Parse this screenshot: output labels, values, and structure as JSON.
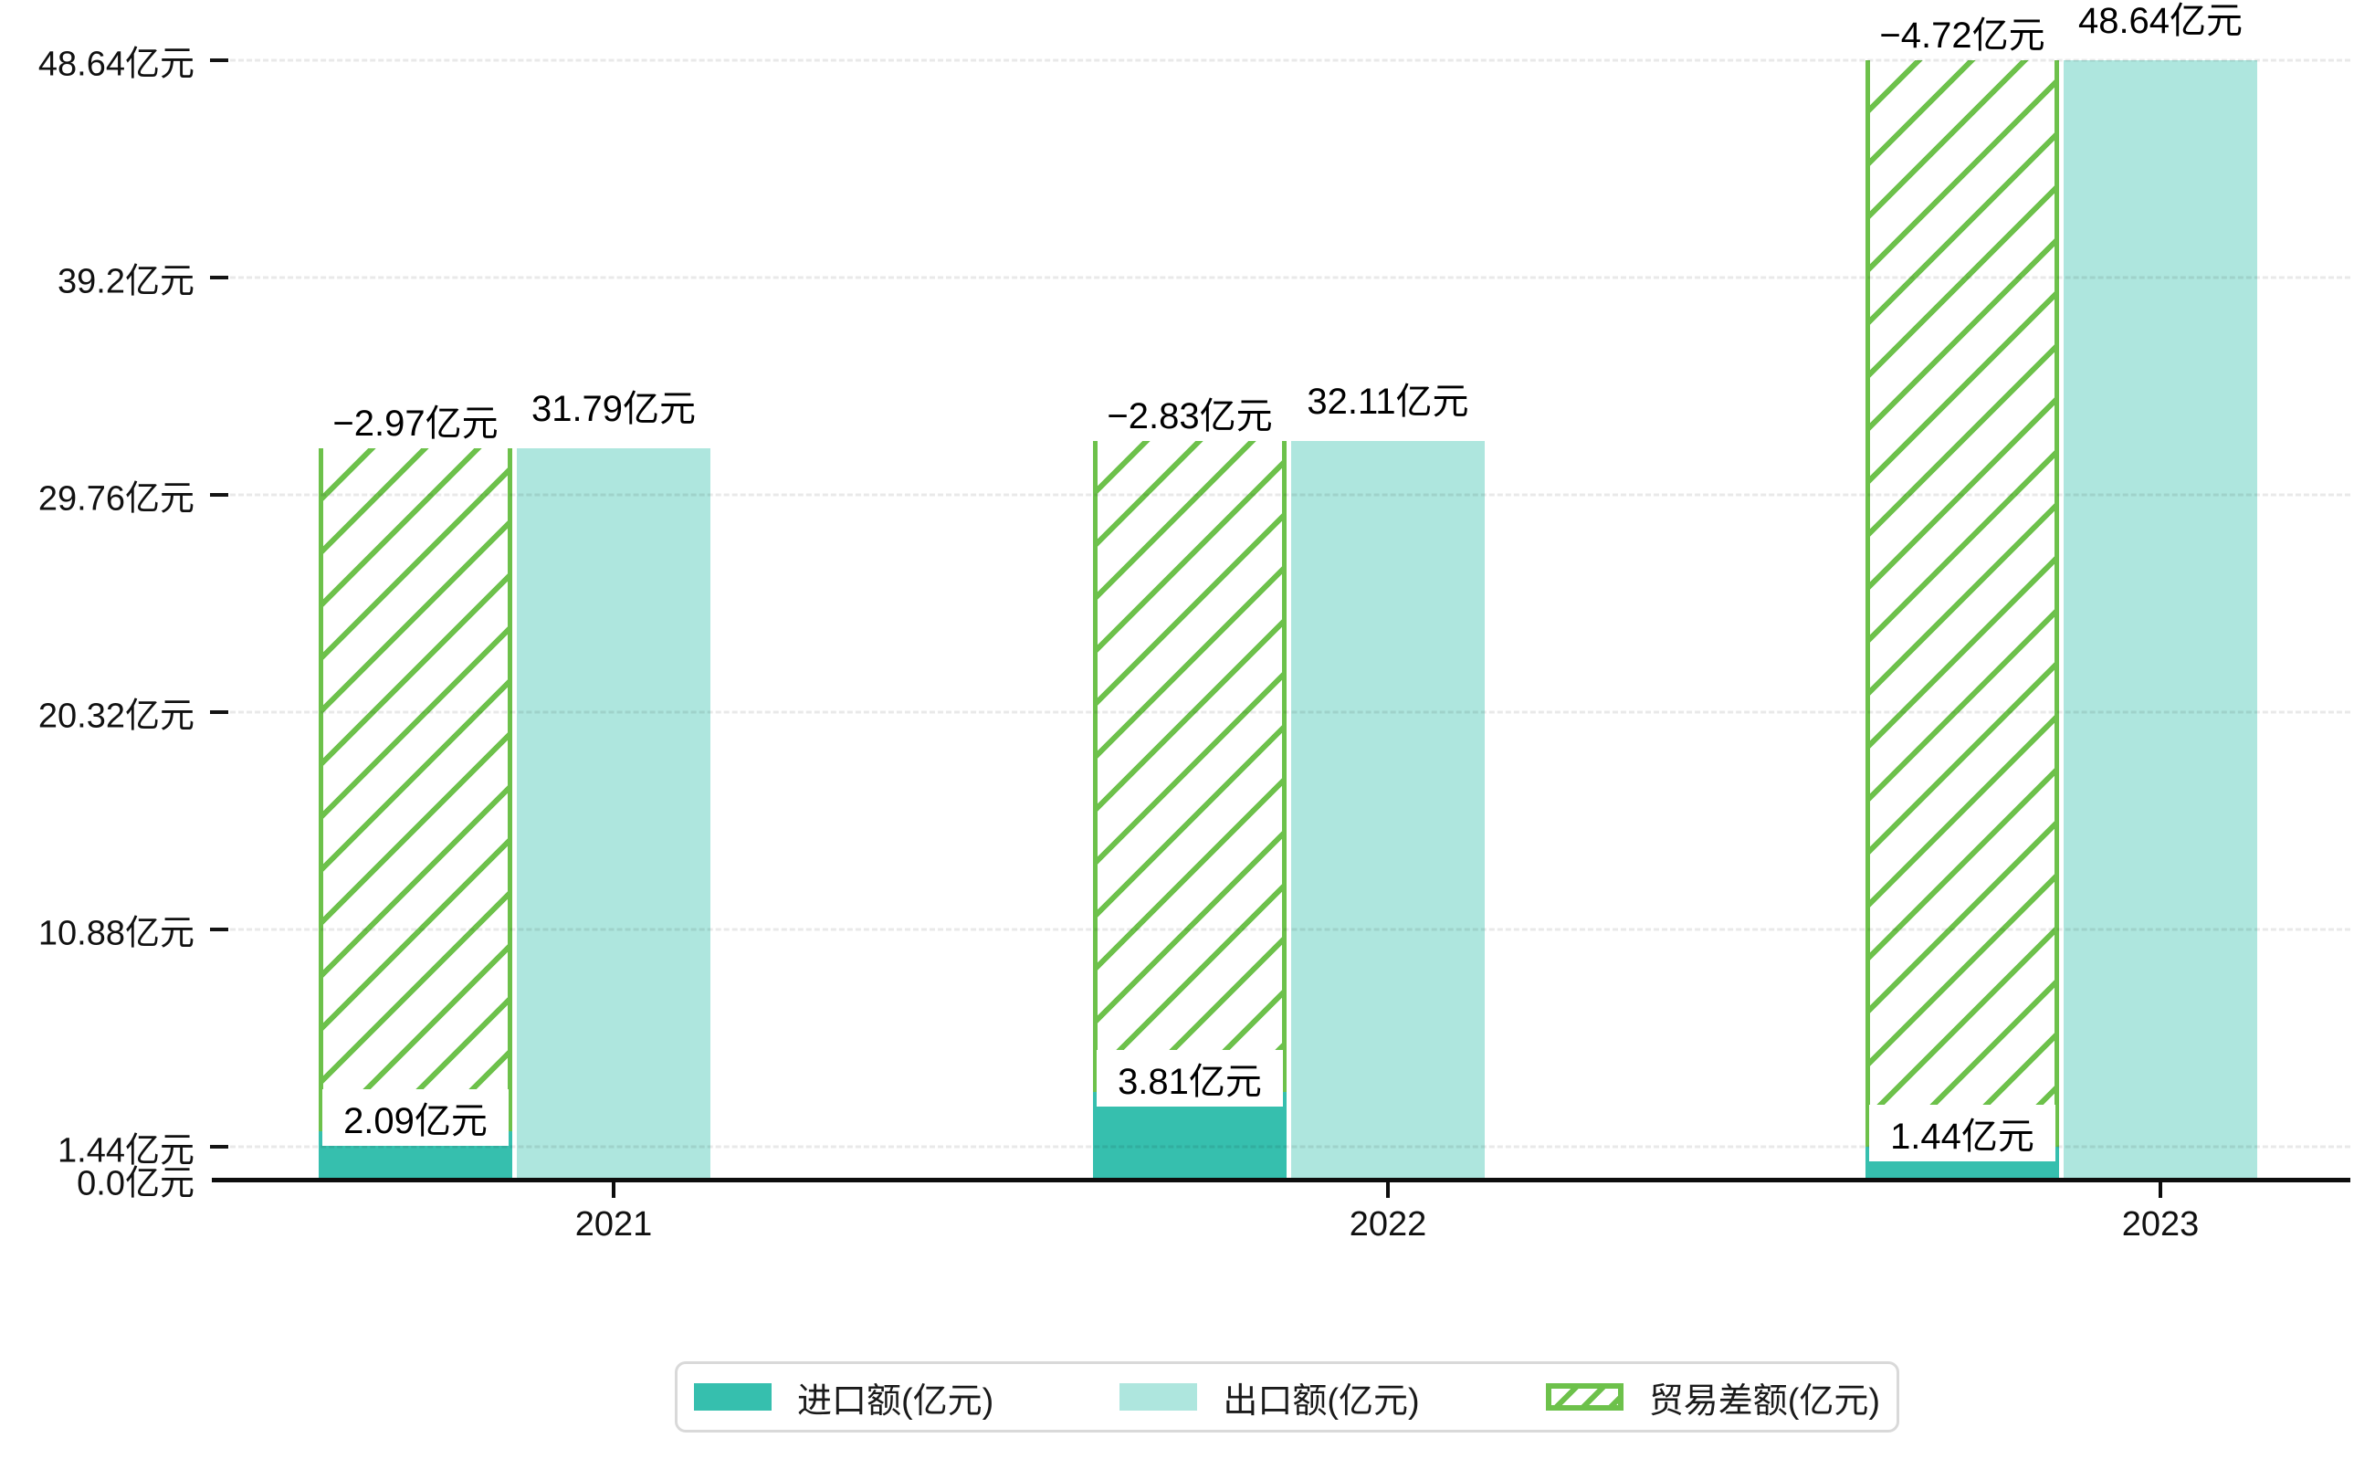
{
  "chart_data": {
    "type": "bar",
    "title": "",
    "categories": [
      "2021",
      "2022",
      "2023"
    ],
    "unit": "亿元",
    "series": [
      {
        "name": "进口额(亿元)",
        "role": "import",
        "values": [
          2.09,
          3.81,
          1.44
        ],
        "labels": [
          "2.09亿元",
          "3.81亿元",
          "1.44亿元"
        ],
        "color": "#36bfae",
        "style": "solid"
      },
      {
        "name": "出口额(亿元)",
        "role": "export",
        "values": [
          31.79,
          32.11,
          48.64
        ],
        "labels": [
          "31.79亿元",
          "32.11亿元",
          "48.64亿元"
        ],
        "color": "#aee6de",
        "style": "solid"
      },
      {
        "name": "贸易差额(亿元)",
        "role": "trade-balance",
        "values": [
          -2.97,
          -2.83,
          -4.72
        ],
        "labels": [
          "−2.97亿元",
          "−2.83亿元",
          "−4.72亿元"
        ],
        "color": "#6dc14b",
        "style": "hatched",
        "drawn_as": "hatched segment stacked from top of import bar up to export value, sharing the import bar column"
      }
    ],
    "y_axis": {
      "ticks": [
        {
          "label": "0.0亿元",
          "value": 0
        },
        {
          "label": "1.44亿元",
          "value": 1.44
        },
        {
          "label": "10.88亿元",
          "value": 10.88
        },
        {
          "label": "20.32亿元",
          "value": 20.32
        },
        {
          "label": "29.76亿元",
          "value": 29.76
        },
        {
          "label": "39.2亿元",
          "value": 39.2
        },
        {
          "label": "48.64亿元",
          "value": 48.64
        }
      ],
      "min": 0,
      "max": 48.64,
      "grid": "dashed"
    },
    "x_axis": {
      "labels": [
        "2021",
        "2022",
        "2023"
      ]
    },
    "legend": {
      "position": "bottom",
      "items": [
        "进口额(亿元)",
        "出口额(亿元)",
        "贸易差额(亿元)"
      ]
    }
  },
  "colors": {
    "import_fill": "#36bfae",
    "export_fill": "#aee6de",
    "balance_green": "#6dc14b",
    "axis": "#0d0d0d",
    "gridline": "#e9e9e9",
    "legend_border": "#d9d9d9",
    "background": "#ffffff",
    "text": "#111111"
  }
}
